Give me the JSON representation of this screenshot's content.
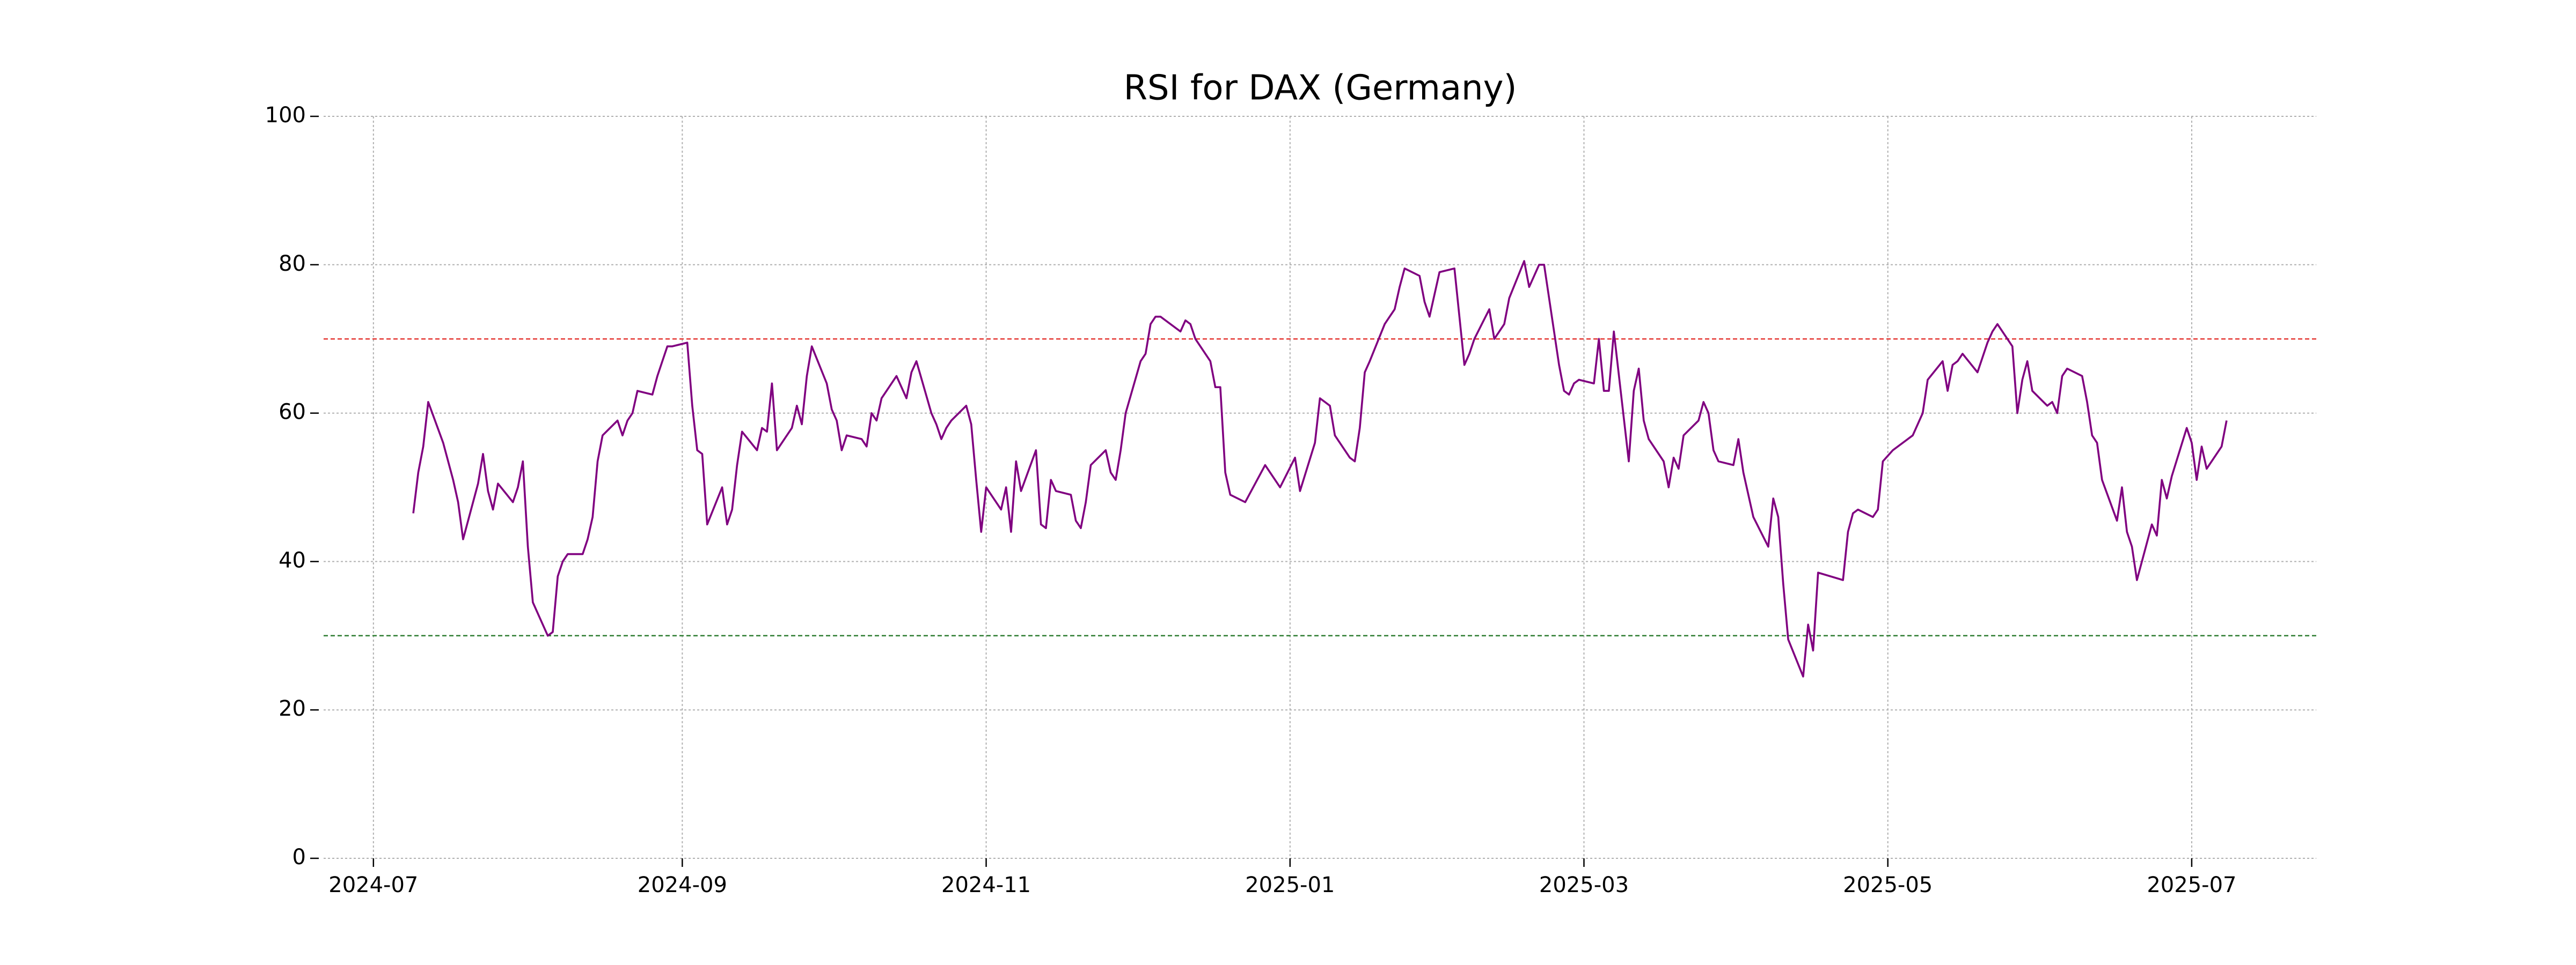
{
  "chart_data": {
    "type": "line",
    "title": "RSI for DAX (Germany)",
    "xlim": [
      "2024-06-21",
      "2025-07-26"
    ],
    "xticks": [
      {
        "value": "2024-07-01",
        "label": "2024-07"
      },
      {
        "value": "2024-09-01",
        "label": "2024-09"
      },
      {
        "value": "2024-11-01",
        "label": "2024-11"
      },
      {
        "value": "2025-01-01",
        "label": "2025-01"
      },
      {
        "value": "2025-03-01",
        "label": "2025-03"
      },
      {
        "value": "2025-05-01",
        "label": "2025-05"
      },
      {
        "value": "2025-07-01",
        "label": "2025-07"
      }
    ],
    "ylim": [
      0,
      100
    ],
    "yticks": [
      0,
      20,
      40,
      60,
      80,
      100
    ],
    "grid": true,
    "hlines": [
      {
        "value": 70,
        "color": "#e53935"
      },
      {
        "value": 30,
        "color": "#2e7d32"
      }
    ],
    "x": [
      "2024-07-09",
      "2024-07-10",
      "2024-07-11",
      "2024-07-12",
      "2024-07-15",
      "2024-07-17",
      "2024-07-18",
      "2024-07-19",
      "2024-07-22",
      "2024-07-23",
      "2024-07-24",
      "2024-07-25",
      "2024-07-26",
      "2024-07-29",
      "2024-07-30",
      "2024-07-31",
      "2024-08-01",
      "2024-08-02",
      "2024-08-05",
      "2024-08-06",
      "2024-08-07",
      "2024-08-08",
      "2024-08-09",
      "2024-08-12",
      "2024-08-13",
      "2024-08-14",
      "2024-08-15",
      "2024-08-16",
      "2024-08-19",
      "2024-08-20",
      "2024-08-21",
      "2024-08-22",
      "2024-08-23",
      "2024-08-26",
      "2024-08-27",
      "2024-08-28",
      "2024-08-29",
      "2024-08-30",
      "2024-09-02",
      "2024-09-03",
      "2024-09-04",
      "2024-09-05",
      "2024-09-06",
      "2024-09-09",
      "2024-09-10",
      "2024-09-11",
      "2024-09-12",
      "2024-09-13",
      "2024-09-16",
      "2024-09-17",
      "2024-09-18",
      "2024-09-19",
      "2024-09-20",
      "2024-09-23",
      "2024-09-24",
      "2024-09-25",
      "2024-09-26",
      "2024-09-27",
      "2024-09-30",
      "2024-10-01",
      "2024-10-02",
      "2024-10-03",
      "2024-10-04",
      "2024-10-07",
      "2024-10-08",
      "2024-10-09",
      "2024-10-10",
      "2024-10-11",
      "2024-10-14",
      "2024-10-15",
      "2024-10-16",
      "2024-10-17",
      "2024-10-18",
      "2024-10-21",
      "2024-10-22",
      "2024-10-23",
      "2024-10-24",
      "2024-10-25",
      "2024-10-28",
      "2024-10-29",
      "2024-10-30",
      "2024-10-31",
      "2024-11-01",
      "2024-11-04",
      "2024-11-05",
      "2024-11-06",
      "2024-11-07",
      "2024-11-08",
      "2024-11-11",
      "2024-11-12",
      "2024-11-13",
      "2024-11-14",
      "2024-11-15",
      "2024-11-18",
      "2024-11-19",
      "2024-11-20",
      "2024-11-21",
      "2024-11-22",
      "2024-11-25",
      "2024-11-26",
      "2024-11-27",
      "2024-11-28",
      "2024-11-29",
      "2024-12-02",
      "2024-12-03",
      "2024-12-04",
      "2024-12-05",
      "2024-12-06",
      "2024-12-09",
      "2024-12-10",
      "2024-12-11",
      "2024-12-12",
      "2024-12-13",
      "2024-12-16",
      "2024-12-17",
      "2024-12-18",
      "2024-12-19",
      "2024-12-20",
      "2024-12-23",
      "2024-12-27",
      "2024-12-30",
      "2025-01-02",
      "2025-01-03",
      "2025-01-06",
      "2025-01-07",
      "2025-01-08",
      "2025-01-09",
      "2025-01-10",
      "2025-01-13",
      "2025-01-14",
      "2025-01-15",
      "2025-01-16",
      "2025-01-17",
      "2025-01-20",
      "2025-01-21",
      "2025-01-22",
      "2025-01-23",
      "2025-01-24",
      "2025-01-27",
      "2025-01-28",
      "2025-01-29",
      "2025-01-30",
      "2025-01-31",
      "2025-02-03",
      "2025-02-04",
      "2025-02-05",
      "2025-02-06",
      "2025-02-07",
      "2025-02-10",
      "2025-02-11",
      "2025-02-12",
      "2025-02-13",
      "2025-02-14",
      "2025-02-17",
      "2025-02-18",
      "2025-02-19",
      "2025-02-20",
      "2025-02-21",
      "2025-02-24",
      "2025-02-25",
      "2025-02-26",
      "2025-02-27",
      "2025-02-28",
      "2025-03-03",
      "2025-03-04",
      "2025-03-05",
      "2025-03-06",
      "2025-03-07",
      "2025-03-10",
      "2025-03-11",
      "2025-03-12",
      "2025-03-13",
      "2025-03-14",
      "2025-03-17",
      "2025-03-18",
      "2025-03-19",
      "2025-03-20",
      "2025-03-21",
      "2025-03-24",
      "2025-03-25",
      "2025-03-26",
      "2025-03-27",
      "2025-03-28",
      "2025-03-31",
      "2025-04-01",
      "2025-04-02",
      "2025-04-03",
      "2025-04-04",
      "2025-04-07",
      "2025-04-08",
      "2025-04-09",
      "2025-04-10",
      "2025-04-11",
      "2025-04-14",
      "2025-04-15",
      "2025-04-16",
      "2025-04-17",
      "2025-04-22",
      "2025-04-23",
      "2025-04-24",
      "2025-04-25",
      "2025-04-28",
      "2025-04-29",
      "2025-04-30",
      "2025-05-02",
      "2025-05-05",
      "2025-05-06",
      "2025-05-07",
      "2025-05-08",
      "2025-05-09",
      "2025-05-12",
      "2025-05-13",
      "2025-05-14",
      "2025-05-15",
      "2025-05-16",
      "2025-05-19",
      "2025-05-20",
      "2025-05-21",
      "2025-05-22",
      "2025-05-23",
      "2025-05-26",
      "2025-05-27",
      "2025-05-28",
      "2025-05-29",
      "2025-05-30",
      "2025-06-02",
      "2025-06-03",
      "2025-06-04",
      "2025-06-05",
      "2025-06-06",
      "2025-06-09",
      "2025-06-10",
      "2025-06-11",
      "2025-06-12",
      "2025-06-13",
      "2025-06-16",
      "2025-06-17",
      "2025-06-18",
      "2025-06-19",
      "2025-06-20",
      "2025-06-23",
      "2025-06-24",
      "2025-06-25",
      "2025-06-26",
      "2025-06-27",
      "2025-06-30",
      "2025-07-01",
      "2025-07-02",
      "2025-07-03",
      "2025-07-04",
      "2025-07-07",
      "2025-07-08"
    ],
    "series": [
      {
        "name": "RSI",
        "color": "#800080",
        "values": [
          46.5,
          52,
          55.5,
          61.5,
          56,
          51,
          48,
          43,
          50.5,
          54.5,
          49.5,
          47,
          50.5,
          48,
          50,
          53.5,
          42,
          34.5,
          30,
          30.5,
          38,
          40,
          41,
          41,
          43,
          46,
          53.5,
          57,
          59,
          57,
          59,
          60,
          63,
          62.5,
          65,
          67,
          69,
          69,
          69.5,
          61,
          55,
          54.5,
          45,
          50,
          45,
          47,
          53,
          57.5,
          55,
          58,
          57.5,
          64,
          55,
          58,
          61,
          58.5,
          65,
          69,
          64,
          60.5,
          59,
          55,
          57,
          56.5,
          55.5,
          60,
          59,
          62,
          65,
          63.5,
          62,
          65.5,
          67,
          60,
          58.5,
          56.5,
          58,
          59,
          61,
          58.5,
          51,
          44,
          50,
          47,
          50,
          44,
          53.5,
          49.5,
          55,
          45,
          44.5,
          51,
          49.5,
          49,
          45.5,
          44.5,
          48,
          53,
          55,
          52,
          51,
          55,
          60,
          67,
          68,
          72,
          73,
          73,
          71.5,
          71,
          72.5,
          72,
          70,
          67,
          63.5,
          63.5,
          52,
          49,
          48,
          53,
          50,
          54,
          49.5,
          56,
          62,
          61.5,
          61,
          57,
          54,
          53.5,
          58,
          65.5,
          67,
          72,
          73,
          74,
          77,
          79.5,
          78.5,
          75,
          73,
          76,
          79,
          79.5,
          73,
          66.5,
          68,
          70,
          74,
          70,
          71,
          72,
          75.5,
          80.5,
          77,
          78.5,
          80,
          80,
          66.5,
          63,
          62.5,
          64,
          64.5,
          64,
          70,
          63,
          63,
          71,
          53.5,
          63,
          66,
          59,
          56.5,
          53.5,
          50,
          54,
          52.5,
          57,
          59,
          61.5,
          60,
          55,
          53.5,
          53,
          56.5,
          52,
          49,
          46,
          42,
          48.5,
          46,
          37,
          29.5,
          24.5,
          31.5,
          28,
          38.5,
          37.5,
          44,
          46.5,
          47,
          46,
          47,
          53.5,
          55,
          56.5,
          57,
          58.5,
          60,
          64.5,
          67,
          63,
          66.5,
          67,
          68,
          65.5,
          67.5,
          69.5,
          71,
          72,
          69,
          60,
          64.5,
          67,
          63,
          61,
          61.5,
          60,
          65,
          66,
          65,
          61.5,
          57,
          56,
          51,
          45.5,
          50,
          44,
          42,
          37.5,
          45,
          43.5,
          51,
          48.5,
          51.5,
          58,
          56,
          51,
          55.5,
          52.5,
          55.5,
          59
        ]
      }
    ]
  }
}
